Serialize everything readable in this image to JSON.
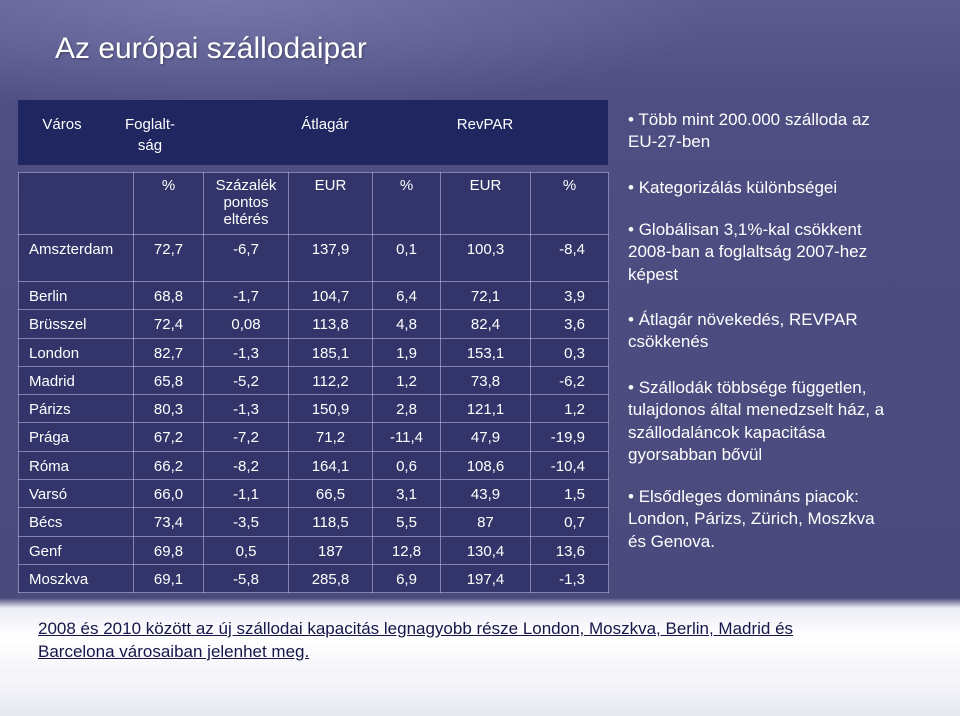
{
  "slide": {
    "title": "Az európai szállodaipar",
    "bullet_marker": "•"
  },
  "table": {
    "header": {
      "city": "Város",
      "occupancy": "Foglalt-\nság",
      "avg_rate": "Átlagár",
      "revpar": "RevPAR"
    },
    "subheader": [
      "%",
      "Százalék\npontos\neltérés",
      "EUR",
      "%",
      "EUR",
      "%"
    ],
    "rows": [
      [
        "Amszterdam",
        "72,7",
        "-6,7",
        "137,9",
        "0,1",
        "100,3",
        "-8,4"
      ],
      [
        "Berlin",
        "68,8",
        "-1,7",
        "104,7",
        "6,4",
        "72,1",
        "3,9"
      ],
      [
        "Brüsszel",
        "72,4",
        "0,08",
        "113,8",
        "4,8",
        "82,4",
        "3,6"
      ],
      [
        "London",
        "82,7",
        "-1,3",
        "185,1",
        "1,9",
        "153,1",
        "0,3"
      ],
      [
        "Madrid",
        "65,8",
        "-5,2",
        "112,2",
        "1,2",
        "73,8",
        "-6,2"
      ],
      [
        "Párizs",
        "80,3",
        "-1,3",
        "150,9",
        "2,8",
        "121,1",
        "1,2"
      ],
      [
        "Prága",
        "67,2",
        "-7,2",
        "71,2",
        "-11,4",
        "47,9",
        "-19,9"
      ],
      [
        "Róma",
        "66,2",
        "-8,2",
        "164,1",
        "0,6",
        "108,6",
        "-10,4"
      ],
      [
        "Varsó",
        "66,0",
        "-1,1",
        "66,5",
        "3,1",
        "43,9",
        "1,5"
      ],
      [
        "Bécs",
        "73,4",
        "-3,5",
        "118,5",
        "5,5",
        "87",
        "0,7"
      ],
      [
        "Genf",
        "69,8",
        "0,5",
        "187",
        "12,8",
        "130,4",
        "13,6"
      ],
      [
        "Moszkva",
        "69,1",
        "-5,8",
        "285,8",
        "6,9",
        "197,4",
        "-1,3"
      ]
    ]
  },
  "bullets": [
    "Több mint 200.000 szálloda az\nEU-27-ben",
    "Kategorizálás különbségei",
    "Globálisan 3,1%-kal csökkent\n2008-ban a foglaltság 2007-hez\nképest",
    "Átlagár növekedés, REVPAR\ncsökkenés",
    "Szállodák többsége független,\ntulajdonos által menedzselt ház, a\nszállodaláncok kapacitása\ngyorsabban bővül",
    "Elsődleges domináns piacok:\nLondon, Párizs, Zürich, Moszkva\nés Genova."
  ],
  "footnote": "2008 és 2010 között az új szállodai kapacitás legnagyobb része London, Moszkva, Berlin, Madrid és\nBarcelona városaiban jelenhet meg."
}
